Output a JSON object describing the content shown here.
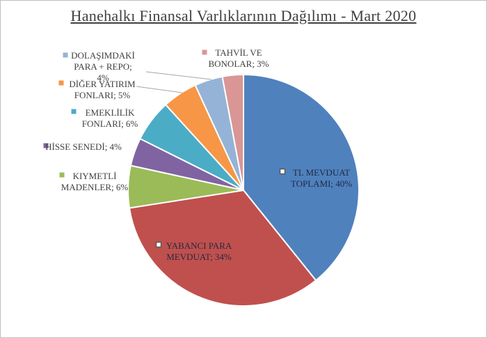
{
  "chart_data": {
    "type": "pie",
    "title": "Hanehalkı Finansal Varlıklarının Dağılımı - Mart 2020",
    "slices": [
      {
        "lines": [
          "TL MEVDUAT",
          "TOPLAMI; 40%"
        ],
        "value": 40,
        "color": "#4f81bd"
      },
      {
        "lines": [
          "YABANCI PARA",
          "MEVDUAT; 34%"
        ],
        "value": 34,
        "color": "#c0504d"
      },
      {
        "lines": [
          "KIYMETLİ",
          "MADENLER; 6%"
        ],
        "value": 6,
        "color": "#9bbb59"
      },
      {
        "lines": [
          "HİSSE SENEDİ; 4%"
        ],
        "value": 4,
        "color": "#8064a2"
      },
      {
        "lines": [
          "EMEKLİLİK",
          "FONLARI; 6%"
        ],
        "value": 6,
        "color": "#4bacc6"
      },
      {
        "lines": [
          "DİĞER YATIRIM",
          "FONLARI; 5%"
        ],
        "value": 5,
        "color": "#f79646"
      },
      {
        "lines": [
          "DOLAŞIMDAKİ",
          "PARA + REPO;",
          "4%"
        ],
        "value": 4,
        "color": "#95b3d7"
      },
      {
        "lines": [
          "TAHVİL VE",
          "BONOLAR; 3%"
        ],
        "value": 3,
        "color": "#d99694"
      }
    ]
  }
}
